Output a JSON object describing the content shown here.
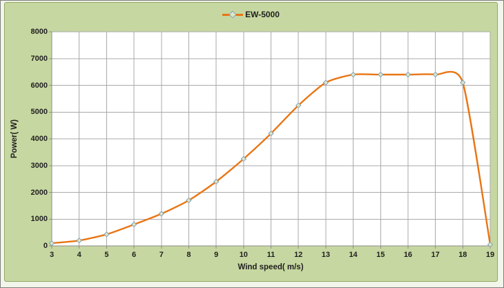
{
  "chart_data": {
    "type": "line",
    "title": "",
    "xlabel": "Wind speed( m/s)",
    "ylabel": "Power( W)",
    "x": [
      3,
      4,
      5,
      6,
      7,
      8,
      9,
      10,
      11,
      12,
      13,
      14,
      15,
      16,
      17,
      18,
      19
    ],
    "series": [
      {
        "name": "EW-5000",
        "values": [
          100,
          200,
          430,
          800,
          1200,
          1700,
          2400,
          3250,
          4200,
          5250,
          6100,
          6400,
          6400,
          6400,
          6400,
          6100,
          50
        ]
      }
    ],
    "xlim": [
      3,
      19
    ],
    "ylim": [
      0,
      8000
    ],
    "x_tick_step": 1,
    "y_tick_step": 1000,
    "grid": true,
    "smooth": true,
    "legend_position": "top-center",
    "marker_shape": "diamond",
    "colors": {
      "line": "#e97513",
      "marker_fill": "#dde6c5",
      "marker_stroke": "#84a0b5",
      "grid": "#a9a9a9",
      "axis": "#8c8c8c",
      "panel_bg": "#c7d7a1",
      "panel_border": "#8fa763",
      "plot_bg": "#ffffff",
      "text": "#1f1f1f"
    }
  }
}
